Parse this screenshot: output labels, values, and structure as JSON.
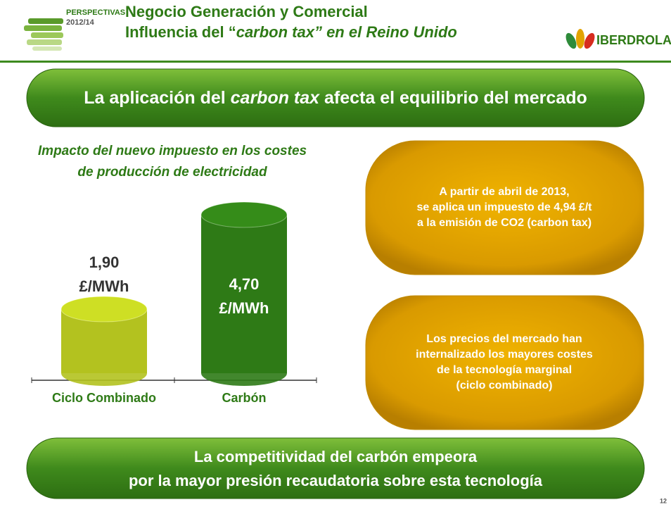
{
  "header": {
    "logo_text": "PERSPECTIVAS",
    "logo_year": "2012/14",
    "title_line1": "Negocio Generación y Comercial",
    "title_line2_prefix": "Influencia del “",
    "title_line2_italic": "carbon tax” en el Reino Unido",
    "brand": "IBERDROLA"
  },
  "banner_top": {
    "before": "La aplicación del ",
    "italic": "carbon tax",
    "after": " afecta el equilibrio del mercado"
  },
  "chart_data": {
    "type": "bar",
    "title_lines": [
      "Impacto del nuevo impuesto en los costes",
      "de producción de electricidad"
    ],
    "categories": [
      "Ciclo Combinado",
      "Carbón"
    ],
    "values": [
      1.9,
      4.7
    ],
    "value_labels": [
      "1,90",
      "4,70"
    ],
    "unit": "£/MWh",
    "colors": [
      "#b3c21f",
      "#2e7a16"
    ]
  },
  "boxes": [
    {
      "lines": [
        "A partir de abril de 2013,",
        "se aplica un impuesto de 4,94 £/t",
        "a la emisión de CO2 (carbon tax)"
      ]
    },
    {
      "lines": [
        "Los precios del mercado han",
        "internalizado los mayores costes",
        "de la tecnología marginal",
        "(ciclo combinado)"
      ]
    }
  ],
  "banner_bottom": {
    "lines": [
      "La competitividad del carbón empeora",
      "por la mayor presión recaudatoria sobre esta tecnología"
    ]
  },
  "page_number": "12"
}
